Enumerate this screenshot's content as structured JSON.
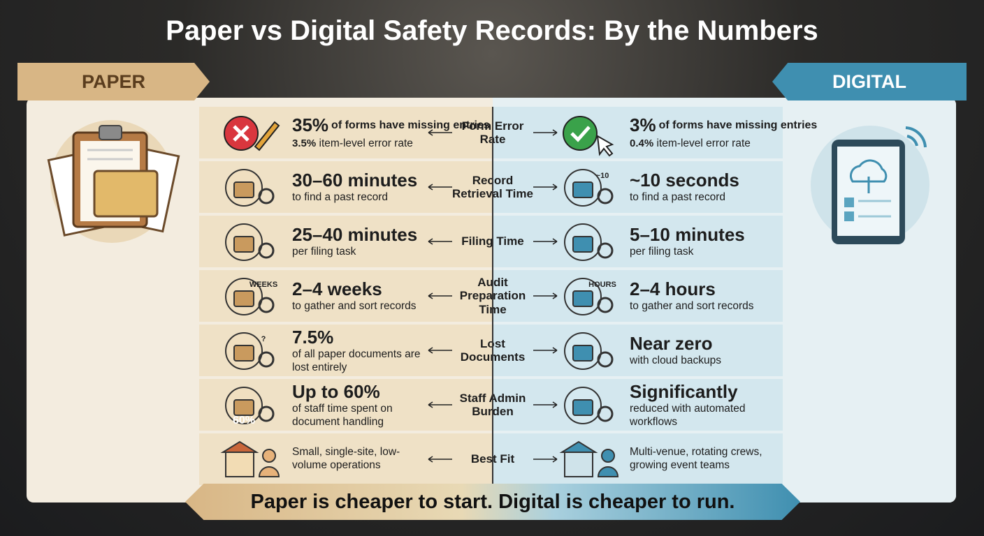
{
  "title": "Paper vs Digital Safety Records: By the Numbers",
  "paper_label": "PAPER",
  "digital_label": "DIGITAL",
  "rows": [
    {
      "metric": "Form Error Rate",
      "paper": {
        "highlight": "35%",
        "highlight_note": "of forms have missing entries",
        "detail_value": "3.5%",
        "detail": "item-level error rate"
      },
      "digital": {
        "highlight": "3%",
        "highlight_note": "of forms have missing entries",
        "detail_value": "0.4%",
        "detail": "item-level error rate"
      }
    },
    {
      "metric": "Record Retrieval Time",
      "paper": {
        "highlight": "30–60 minutes",
        "detail": "to find a past record"
      },
      "digital": {
        "highlight": "~10 seconds",
        "detail": "to find a past record",
        "icon_label": "~10"
      }
    },
    {
      "metric": "Filing Time",
      "paper": {
        "highlight": "25–40 minutes",
        "detail": "per filing task"
      },
      "digital": {
        "highlight": "5–10 minutes",
        "detail": "per filing task"
      }
    },
    {
      "metric": "Audit Preparation Time",
      "paper": {
        "highlight": "2–4 weeks",
        "detail": "to gather and sort records",
        "icon_label": "WEEKS"
      },
      "digital": {
        "highlight": "2–4 hours",
        "detail": "to gather and sort records",
        "icon_label": "HOURS"
      }
    },
    {
      "metric": "Lost Documents",
      "paper": {
        "highlight": "7.5%",
        "detail": "of all paper documents are lost entirely",
        "icon_label": "?"
      },
      "digital": {
        "highlight": "Near zero",
        "detail": "with cloud backups"
      }
    },
    {
      "metric": "Staff Admin Burden",
      "paper": {
        "highlight": "Up to 60%",
        "detail": "of staff time spent on document handling",
        "icon_label": "60%"
      },
      "digital": {
        "highlight": "Significantly",
        "detail": "reduced with automated workflows"
      }
    },
    {
      "metric": "Best Fit",
      "paper": {
        "detail": "Small, single-site, low-volume operations"
      },
      "digital": {
        "detail": "Multi-venue, rotating crews, growing event teams"
      }
    }
  ],
  "footer": "Paper is cheaper to start. Digital is cheaper to run."
}
